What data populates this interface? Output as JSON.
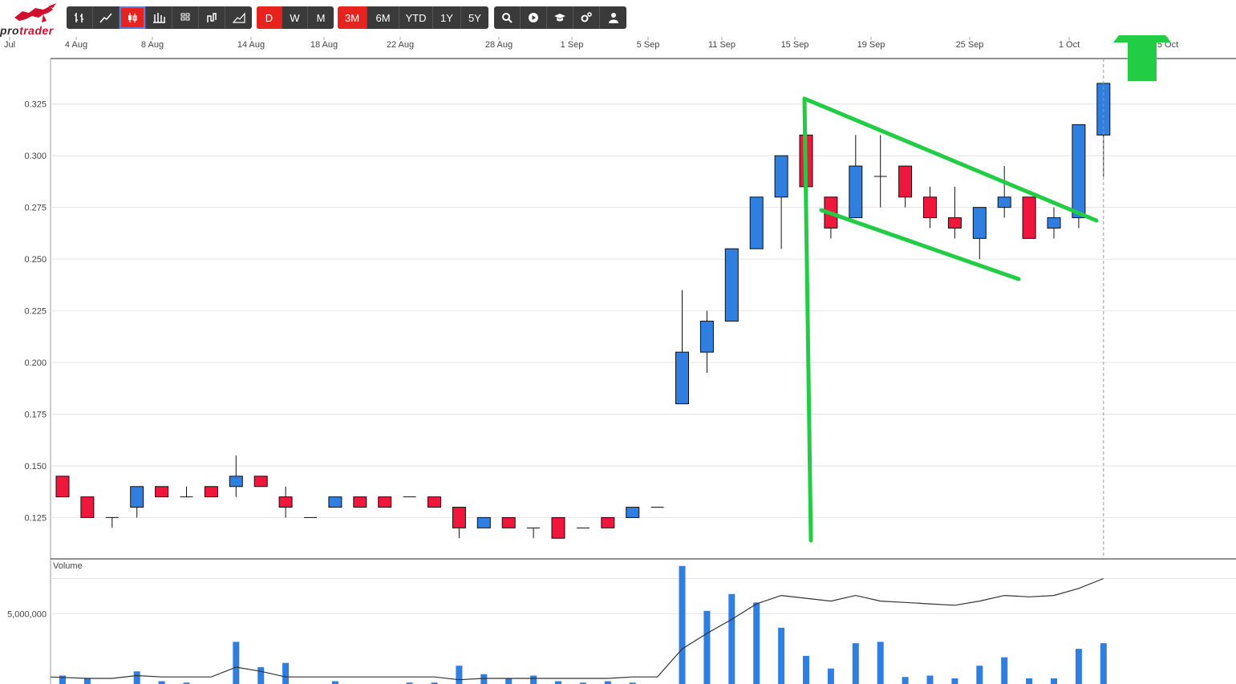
{
  "logo": {
    "text_dark": "pro",
    "text_red": "trader"
  },
  "toolbar": {
    "chart_types": [
      {
        "name": "ohlc-chart-icon"
      },
      {
        "name": "line-chart-icon"
      },
      {
        "name": "candlestick-chart-icon",
        "active": true
      },
      {
        "name": "hlc-chart-icon"
      },
      {
        "name": "heikin-ashi-icon"
      },
      {
        "name": "kagi-chart-icon"
      },
      {
        "name": "mountain-chart-icon"
      }
    ],
    "intervals": [
      {
        "label": "D",
        "active": true
      },
      {
        "label": "W"
      },
      {
        "label": "M"
      }
    ],
    "ranges": [
      {
        "label": "3M",
        "active": true
      },
      {
        "label": "6M"
      },
      {
        "label": "YTD"
      },
      {
        "label": "1Y"
      },
      {
        "label": "5Y"
      }
    ],
    "tools": [
      {
        "name": "search-icon"
      },
      {
        "name": "play-icon"
      },
      {
        "name": "education-icon"
      },
      {
        "name": "settings-icon"
      },
      {
        "name": "user-icon"
      }
    ]
  },
  "chart_data": {
    "type": "candlestick",
    "date_labels": [
      "Jul",
      "4 Aug",
      "8 Aug",
      "14 Aug",
      "18 Aug",
      "22 Aug",
      "28 Aug",
      "1 Sep",
      "5 Sep",
      "11 Sep",
      "15 Sep",
      "19 Sep",
      "25 Sep",
      "1 Oct",
      "5 Oct"
    ],
    "ylim": [
      0.105,
      0.347
    ],
    "y_ticks": [
      "0.125",
      "0.150",
      "0.175",
      "0.200",
      "0.225",
      "0.250",
      "0.275",
      "0.300",
      "0.325"
    ],
    "up_color": "#2f7ee0",
    "down_color": "#f0163c",
    "candles": [
      {
        "o": 0.135,
        "h": 0.145,
        "l": 0.135,
        "c": 0.145,
        "dir": "down"
      },
      {
        "o": 0.135,
        "h": 0.135,
        "l": 0.125,
        "c": 0.125,
        "dir": "down"
      },
      {
        "o": 0.125,
        "h": 0.125,
        "l": 0.12,
        "c": 0.125,
        "dir": "flat"
      },
      {
        "o": 0.13,
        "h": 0.14,
        "l": 0.125,
        "c": 0.14,
        "dir": "up"
      },
      {
        "o": 0.14,
        "h": 0.14,
        "l": 0.135,
        "c": 0.135,
        "dir": "down"
      },
      {
        "o": 0.135,
        "h": 0.14,
        "l": 0.135,
        "c": 0.135,
        "dir": "flat"
      },
      {
        "o": 0.14,
        "h": 0.14,
        "l": 0.135,
        "c": 0.135,
        "dir": "down"
      },
      {
        "o": 0.14,
        "h": 0.155,
        "l": 0.135,
        "c": 0.145,
        "dir": "up"
      },
      {
        "o": 0.145,
        "h": 0.145,
        "l": 0.14,
        "c": 0.14,
        "dir": "down"
      },
      {
        "o": 0.135,
        "h": 0.14,
        "l": 0.125,
        "c": 0.13,
        "dir": "down"
      },
      {
        "o": 0.125,
        "h": 0.125,
        "l": 0.125,
        "c": 0.125,
        "dir": "flat"
      },
      {
        "o": 0.13,
        "h": 0.135,
        "l": 0.13,
        "c": 0.135,
        "dir": "up"
      },
      {
        "o": 0.135,
        "h": 0.135,
        "l": 0.13,
        "c": 0.13,
        "dir": "down"
      },
      {
        "o": 0.135,
        "h": 0.135,
        "l": 0.13,
        "c": 0.13,
        "dir": "down"
      },
      {
        "o": 0.135,
        "h": 0.135,
        "l": 0.135,
        "c": 0.135,
        "dir": "flat"
      },
      {
        "o": 0.135,
        "h": 0.135,
        "l": 0.13,
        "c": 0.13,
        "dir": "down"
      },
      {
        "o": 0.13,
        "h": 0.13,
        "l": 0.115,
        "c": 0.12,
        "dir": "down"
      },
      {
        "o": 0.12,
        "h": 0.125,
        "l": 0.12,
        "c": 0.125,
        "dir": "up"
      },
      {
        "o": 0.125,
        "h": 0.125,
        "l": 0.12,
        "c": 0.12,
        "dir": "down"
      },
      {
        "o": 0.12,
        "h": 0.12,
        "l": 0.115,
        "c": 0.12,
        "dir": "flat"
      },
      {
        "o": 0.125,
        "h": 0.125,
        "l": 0.115,
        "c": 0.115,
        "dir": "down"
      },
      {
        "o": 0.12,
        "h": 0.12,
        "l": 0.12,
        "c": 0.12,
        "dir": "flat"
      },
      {
        "o": 0.125,
        "h": 0.125,
        "l": 0.12,
        "c": 0.12,
        "dir": "down"
      },
      {
        "o": 0.125,
        "h": 0.13,
        "l": 0.125,
        "c": 0.13,
        "dir": "up"
      },
      {
        "o": 0.13,
        "h": 0.13,
        "l": 0.13,
        "c": 0.13,
        "dir": "flat"
      },
      {
        "o": 0.18,
        "h": 0.235,
        "l": 0.18,
        "c": 0.205,
        "dir": "up"
      },
      {
        "o": 0.205,
        "h": 0.225,
        "l": 0.195,
        "c": 0.22,
        "dir": "up"
      },
      {
        "o": 0.22,
        "h": 0.255,
        "l": 0.22,
        "c": 0.255,
        "dir": "up"
      },
      {
        "o": 0.255,
        "h": 0.28,
        "l": 0.255,
        "c": 0.28,
        "dir": "up"
      },
      {
        "o": 0.28,
        "h": 0.3,
        "l": 0.255,
        "c": 0.3,
        "dir": "up"
      },
      {
        "o": 0.31,
        "h": 0.31,
        "l": 0.285,
        "c": 0.285,
        "dir": "down"
      },
      {
        "o": 0.28,
        "h": 0.28,
        "l": 0.26,
        "c": 0.265,
        "dir": "down"
      },
      {
        "o": 0.27,
        "h": 0.31,
        "l": 0.27,
        "c": 0.295,
        "dir": "up"
      },
      {
        "o": 0.29,
        "h": 0.31,
        "l": 0.275,
        "c": 0.29,
        "dir": "flat"
      },
      {
        "o": 0.295,
        "h": 0.295,
        "l": 0.275,
        "c": 0.28,
        "dir": "down"
      },
      {
        "o": 0.28,
        "h": 0.285,
        "l": 0.265,
        "c": 0.27,
        "dir": "down"
      },
      {
        "o": 0.27,
        "h": 0.285,
        "l": 0.26,
        "c": 0.265,
        "dir": "down"
      },
      {
        "o": 0.26,
        "h": 0.275,
        "l": 0.25,
        "c": 0.275,
        "dir": "up"
      },
      {
        "o": 0.275,
        "h": 0.295,
        "l": 0.27,
        "c": 0.28,
        "dir": "up"
      },
      {
        "o": 0.28,
        "h": 0.28,
        "l": 0.26,
        "c": 0.26,
        "dir": "down"
      },
      {
        "o": 0.265,
        "h": 0.275,
        "l": 0.26,
        "c": 0.27,
        "dir": "up"
      },
      {
        "o": 0.27,
        "h": 0.315,
        "l": 0.265,
        "c": 0.315,
        "dir": "up"
      },
      {
        "o": 0.31,
        "h": 0.335,
        "l": 0.29,
        "c": 0.335,
        "dir": "up"
      }
    ],
    "volume": {
      "label": "Volume",
      "y_tick": "5,000,000",
      "max": 8500000,
      "bars": [
        600000,
        400000,
        0,
        900000,
        200000,
        100000,
        0,
        3000000,
        1200000,
        1500000,
        0,
        200000,
        0,
        0,
        100000,
        100000,
        1300000,
        700000,
        400000,
        600000,
        200000,
        100000,
        200000,
        100000,
        0,
        8400000,
        5200000,
        6400000,
        5800000,
        4000000,
        2000000,
        1100000,
        2900000,
        3000000,
        500000,
        600000,
        400000,
        1300000,
        1900000,
        400000,
        400000,
        2500000,
        2900000
      ],
      "avg": [
        500000,
        400000,
        400000,
        600000,
        500000,
        500000,
        500000,
        1200000,
        900000,
        500000,
        500000,
        500000,
        500000,
        500000,
        500000,
        500000,
        300000,
        400000,
        400000,
        400000,
        400000,
        400000,
        400000,
        500000,
        500000,
        2500000,
        3600000,
        4600000,
        5700000,
        6300000,
        6100000,
        5900000,
        6300000,
        5900000,
        5800000,
        5700000,
        5600000,
        5900000,
        6300000,
        6200000,
        6300000,
        6800000,
        7500000
      ]
    }
  }
}
